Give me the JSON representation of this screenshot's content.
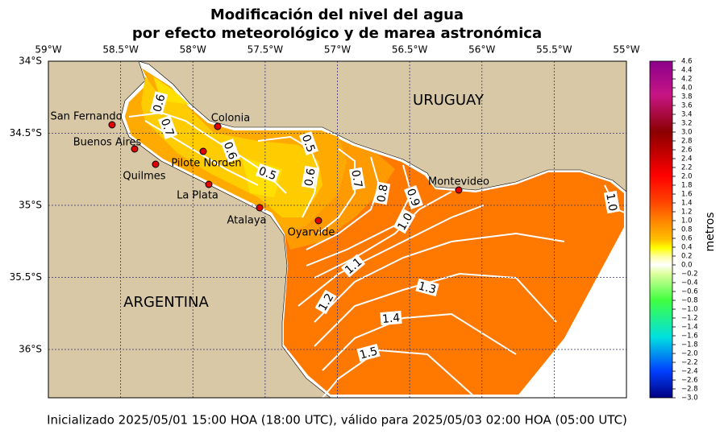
{
  "title_lines": [
    "Modificación del nivel del agua",
    "por efecto meteorológico y de marea astronómica"
  ],
  "map": {
    "lon_ticks": [
      {
        "value": -59,
        "label": "59°W"
      },
      {
        "value": -58.5,
        "label": "58.5°W"
      },
      {
        "value": -58,
        "label": "58°W"
      },
      {
        "value": -57.5,
        "label": "57.5°W"
      },
      {
        "value": -57,
        "label": "57°W"
      },
      {
        "value": -56.5,
        "label": "56.5°W"
      },
      {
        "value": -56,
        "label": "56°W"
      },
      {
        "value": -55.5,
        "label": "55.5°W"
      },
      {
        "value": -55,
        "label": "55°W"
      }
    ],
    "lat_ticks": [
      {
        "value": -34,
        "label": "34°S"
      },
      {
        "value": -34.5,
        "label": "34.5°S"
      },
      {
        "value": -35,
        "label": "35°S"
      },
      {
        "value": -35.5,
        "label": "35.5°S"
      },
      {
        "value": -36,
        "label": "36°S"
      }
    ],
    "regions": [
      "URUGUAY",
      "ARGENTINA"
    ],
    "places": [
      "San Fernando",
      "Buenos Aires",
      "Quilmes",
      "Colonia",
      "Pilote Norden",
      "La Plata",
      "Atalaya",
      "Oyarvide",
      "Montevideo"
    ],
    "contour_labels": [
      "0.6",
      "0.7",
      "0.6",
      "0.5",
      "0.5",
      "0.6",
      "0.7",
      "0.8",
      "0.9",
      "1.0",
      "1.1",
      "1.2",
      "1.3",
      "1.4",
      "1.5",
      "1.0"
    ]
  },
  "colorbar": {
    "label": "metros",
    "ticks": [
      {
        "value": -3,
        "label": "−3.0"
      },
      {
        "value": -2.8,
        "label": "−2.8"
      },
      {
        "value": -2.6,
        "label": "−2.6"
      },
      {
        "value": -2.4,
        "label": "−2.4"
      },
      {
        "value": -2.2,
        "label": "−2.2"
      },
      {
        "value": -2,
        "label": "−2.0"
      },
      {
        "value": -1.8,
        "label": "−1.8"
      },
      {
        "value": -1.6,
        "label": "−1.6"
      },
      {
        "value": -1.4,
        "label": "−1.4"
      },
      {
        "value": -1.2,
        "label": "−1.2"
      },
      {
        "value": -1,
        "label": "−1.0"
      },
      {
        "value": -0.8,
        "label": "−0.8"
      },
      {
        "value": -0.6,
        "label": "−0.6"
      },
      {
        "value": -0.4,
        "label": "−0.4"
      },
      {
        "value": -0.2,
        "label": "−0.2"
      },
      {
        "value": 0,
        "label": "0.0"
      },
      0.2,
      0.4,
      0.6,
      0.8,
      {
        "value": 1,
        "label": "1.0"
      },
      1.2,
      1.4,
      1.6,
      1.8,
      {
        "value": 2,
        "label": "2.0"
      },
      2.2,
      2.4,
      2.6,
      2.8,
      {
        "value": 3,
        "label": "3.0"
      },
      3.2,
      3.4,
      3.6,
      3.8,
      {
        "value": 4,
        "label": "4.0"
      },
      4.2,
      4.4,
      4.6
    ]
  },
  "footer": "Inicializado 2025/05/01 15:00 HOA (18:00 UTC), válido para 2025/05/03 02:00 HOA (05:00 UTC)"
}
